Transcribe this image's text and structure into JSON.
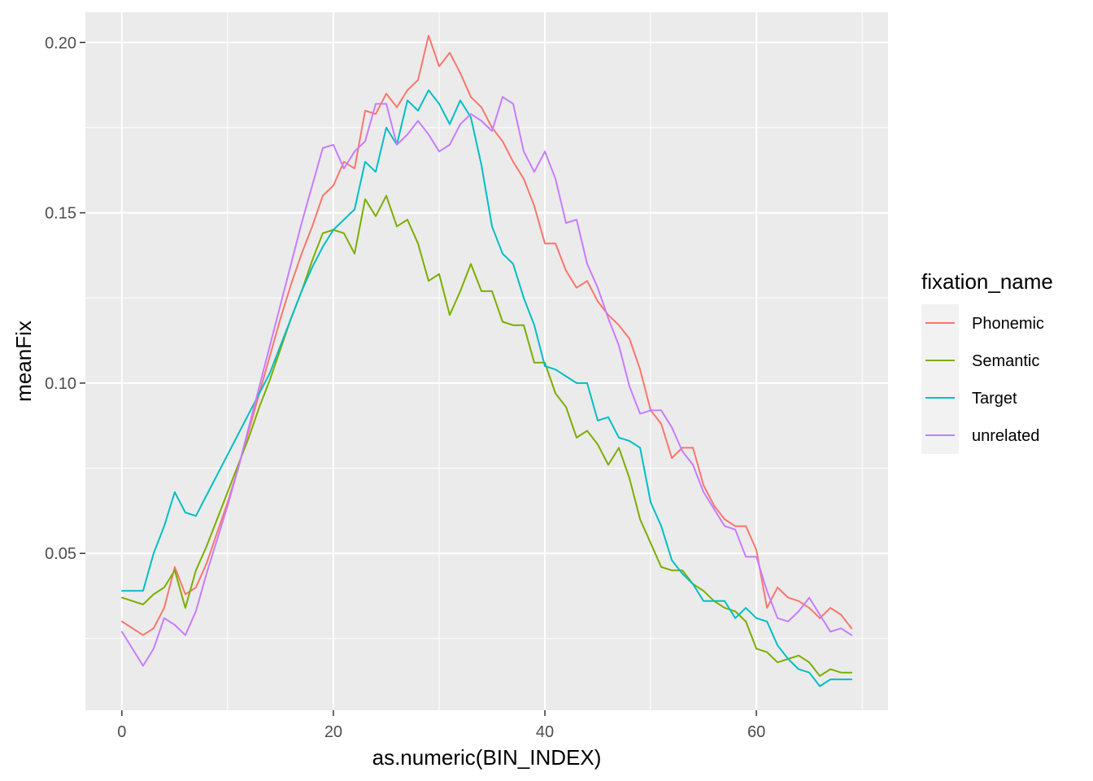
{
  "chart_data": {
    "type": "line",
    "xlabel": "as.numeric(BIN_INDEX)",
    "ylabel": "meanFix",
    "xlim": [
      -3.45,
      72.45
    ],
    "ylim": [
      0.00395,
      0.2089
    ],
    "x_ticks": [
      0,
      20,
      40,
      60
    ],
    "x_tick_labels": [
      "0",
      "20",
      "40",
      "60"
    ],
    "y_ticks": [
      0.05,
      0.1,
      0.15,
      0.2
    ],
    "y_tick_labels": [
      "0.05",
      "0.10",
      "0.15",
      "0.20"
    ],
    "grid": true,
    "legend": {
      "title": "fixation_name",
      "position": "right"
    },
    "series": [
      {
        "name": "Phonemic",
        "color": "#F8766D",
        "x": [
          0,
          2,
          3,
          4,
          5,
          6,
          7,
          8,
          9,
          10,
          11,
          12,
          13,
          14,
          15,
          16,
          17,
          18,
          19,
          20,
          21,
          22,
          23,
          24,
          25,
          26,
          27,
          28,
          29,
          30,
          31,
          32,
          33,
          34,
          35,
          36,
          37,
          38,
          39,
          40,
          41,
          42,
          43,
          44,
          45,
          46,
          47,
          48,
          49,
          50,
          51,
          52,
          53,
          54,
          55,
          56,
          57,
          58,
          59,
          60,
          61,
          62,
          63,
          64,
          65,
          66,
          67,
          68,
          69
        ],
        "y": [
          0.03,
          0.026,
          0.028,
          0.034,
          0.046,
          0.038,
          0.04,
          0.047,
          0.056,
          0.065,
          0.075,
          0.086,
          0.097,
          0.108,
          0.119,
          0.129,
          0.138,
          0.146,
          0.155,
          0.158,
          0.165,
          0.163,
          0.18,
          0.179,
          0.185,
          0.181,
          0.186,
          0.189,
          0.202,
          0.193,
          0.197,
          0.191,
          0.184,
          0.181,
          0.175,
          0.171,
          0.165,
          0.16,
          0.152,
          0.141,
          0.141,
          0.133,
          0.128,
          0.13,
          0.124,
          0.12,
          0.117,
          0.113,
          0.104,
          0.092,
          0.088,
          0.078,
          0.081,
          0.081,
          0.07,
          0.064,
          0.06,
          0.058,
          0.058,
          0.051,
          0.034,
          0.04,
          0.037,
          0.036,
          0.034,
          0.031,
          0.034,
          0.032,
          0.028
        ]
      },
      {
        "name": "Semantic",
        "color": "#7CAE00",
        "x": [
          0,
          2,
          3,
          4,
          5,
          6,
          7,
          8,
          9,
          10,
          11,
          12,
          13,
          14,
          15,
          16,
          17,
          18,
          19,
          20,
          21,
          22,
          23,
          24,
          25,
          26,
          27,
          28,
          29,
          30,
          31,
          32,
          33,
          34,
          35,
          36,
          37,
          38,
          39,
          40,
          41,
          42,
          43,
          44,
          45,
          46,
          47,
          48,
          49,
          50,
          51,
          52,
          53,
          54,
          55,
          56,
          57,
          58,
          59,
          60,
          61,
          62,
          63,
          64,
          65,
          66,
          67,
          68,
          69
        ],
        "y": [
          0.037,
          0.035,
          0.038,
          0.04,
          0.045,
          0.034,
          0.045,
          0.052,
          0.06,
          0.068,
          0.076,
          0.084,
          0.093,
          0.101,
          0.11,
          0.119,
          0.127,
          0.136,
          0.144,
          0.145,
          0.144,
          0.138,
          0.154,
          0.149,
          0.155,
          0.146,
          0.148,
          0.141,
          0.13,
          0.132,
          0.12,
          0.127,
          0.135,
          0.127,
          0.127,
          0.118,
          0.117,
          0.117,
          0.106,
          0.106,
          0.097,
          0.093,
          0.084,
          0.086,
          0.082,
          0.076,
          0.081,
          0.072,
          0.06,
          0.053,
          0.046,
          0.045,
          0.045,
          0.041,
          0.039,
          0.036,
          0.034,
          0.033,
          0.03,
          0.022,
          0.021,
          0.018,
          0.019,
          0.02,
          0.018,
          0.014,
          0.016,
          0.015,
          0.015
        ]
      },
      {
        "name": "Target",
        "color": "#00BFC4",
        "x": [
          0,
          2,
          3,
          4,
          5,
          6,
          7,
          8,
          9,
          10,
          11,
          12,
          13,
          14,
          15,
          16,
          17,
          18,
          19,
          20,
          21,
          22,
          23,
          24,
          25,
          26,
          27,
          28,
          29,
          30,
          31,
          32,
          33,
          34,
          35,
          36,
          37,
          38,
          39,
          40,
          41,
          42,
          43,
          44,
          45,
          46,
          47,
          48,
          49,
          50,
          51,
          52,
          53,
          54,
          55,
          56,
          57,
          58,
          59,
          60,
          61,
          62,
          63,
          64,
          65,
          66,
          67,
          68,
          69
        ],
        "y": [
          0.039,
          0.039,
          0.05,
          0.058,
          0.068,
          0.062,
          0.061,
          0.067,
          0.073,
          0.079,
          0.085,
          0.091,
          0.097,
          0.103,
          0.111,
          0.119,
          0.127,
          0.134,
          0.14,
          0.145,
          0.148,
          0.151,
          0.165,
          0.162,
          0.175,
          0.17,
          0.183,
          0.18,
          0.186,
          0.182,
          0.176,
          0.183,
          0.178,
          0.164,
          0.146,
          0.138,
          0.135,
          0.125,
          0.117,
          0.105,
          0.104,
          0.102,
          0.1,
          0.1,
          0.089,
          0.09,
          0.084,
          0.083,
          0.081,
          0.065,
          0.058,
          0.048,
          0.044,
          0.041,
          0.036,
          0.036,
          0.036,
          0.031,
          0.034,
          0.031,
          0.03,
          0.023,
          0.019,
          0.016,
          0.015,
          0.011,
          0.013,
          0.013,
          0.013
        ]
      },
      {
        "name": "unrelated",
        "color": "#C77CFF",
        "x": [
          0,
          2,
          3,
          4,
          5,
          6,
          7,
          8,
          9,
          10,
          11,
          12,
          13,
          14,
          15,
          16,
          17,
          18,
          19,
          20,
          21,
          22,
          23,
          24,
          25,
          26,
          27,
          28,
          29,
          30,
          31,
          32,
          33,
          34,
          35,
          36,
          37,
          38,
          39,
          40,
          41,
          42,
          43,
          44,
          45,
          46,
          47,
          48,
          49,
          50,
          51,
          52,
          53,
          54,
          55,
          56,
          57,
          58,
          59,
          60,
          61,
          62,
          63,
          64,
          65,
          66,
          67,
          68,
          69
        ],
        "y": [
          0.027,
          0.017,
          0.022,
          0.031,
          0.029,
          0.026,
          0.033,
          0.044,
          0.054,
          0.064,
          0.075,
          0.087,
          0.099,
          0.111,
          0.123,
          0.135,
          0.147,
          0.158,
          0.169,
          0.17,
          0.163,
          0.168,
          0.171,
          0.182,
          0.182,
          0.17,
          0.173,
          0.177,
          0.173,
          0.168,
          0.17,
          0.176,
          0.179,
          0.177,
          0.174,
          0.184,
          0.182,
          0.168,
          0.162,
          0.168,
          0.16,
          0.147,
          0.148,
          0.135,
          0.128,
          0.119,
          0.111,
          0.099,
          0.091,
          0.092,
          0.092,
          0.087,
          0.08,
          0.076,
          0.068,
          0.063,
          0.058,
          0.057,
          0.049,
          0.049,
          0.039,
          0.031,
          0.03,
          0.033,
          0.037,
          0.032,
          0.027,
          0.028,
          0.026
        ]
      }
    ]
  }
}
